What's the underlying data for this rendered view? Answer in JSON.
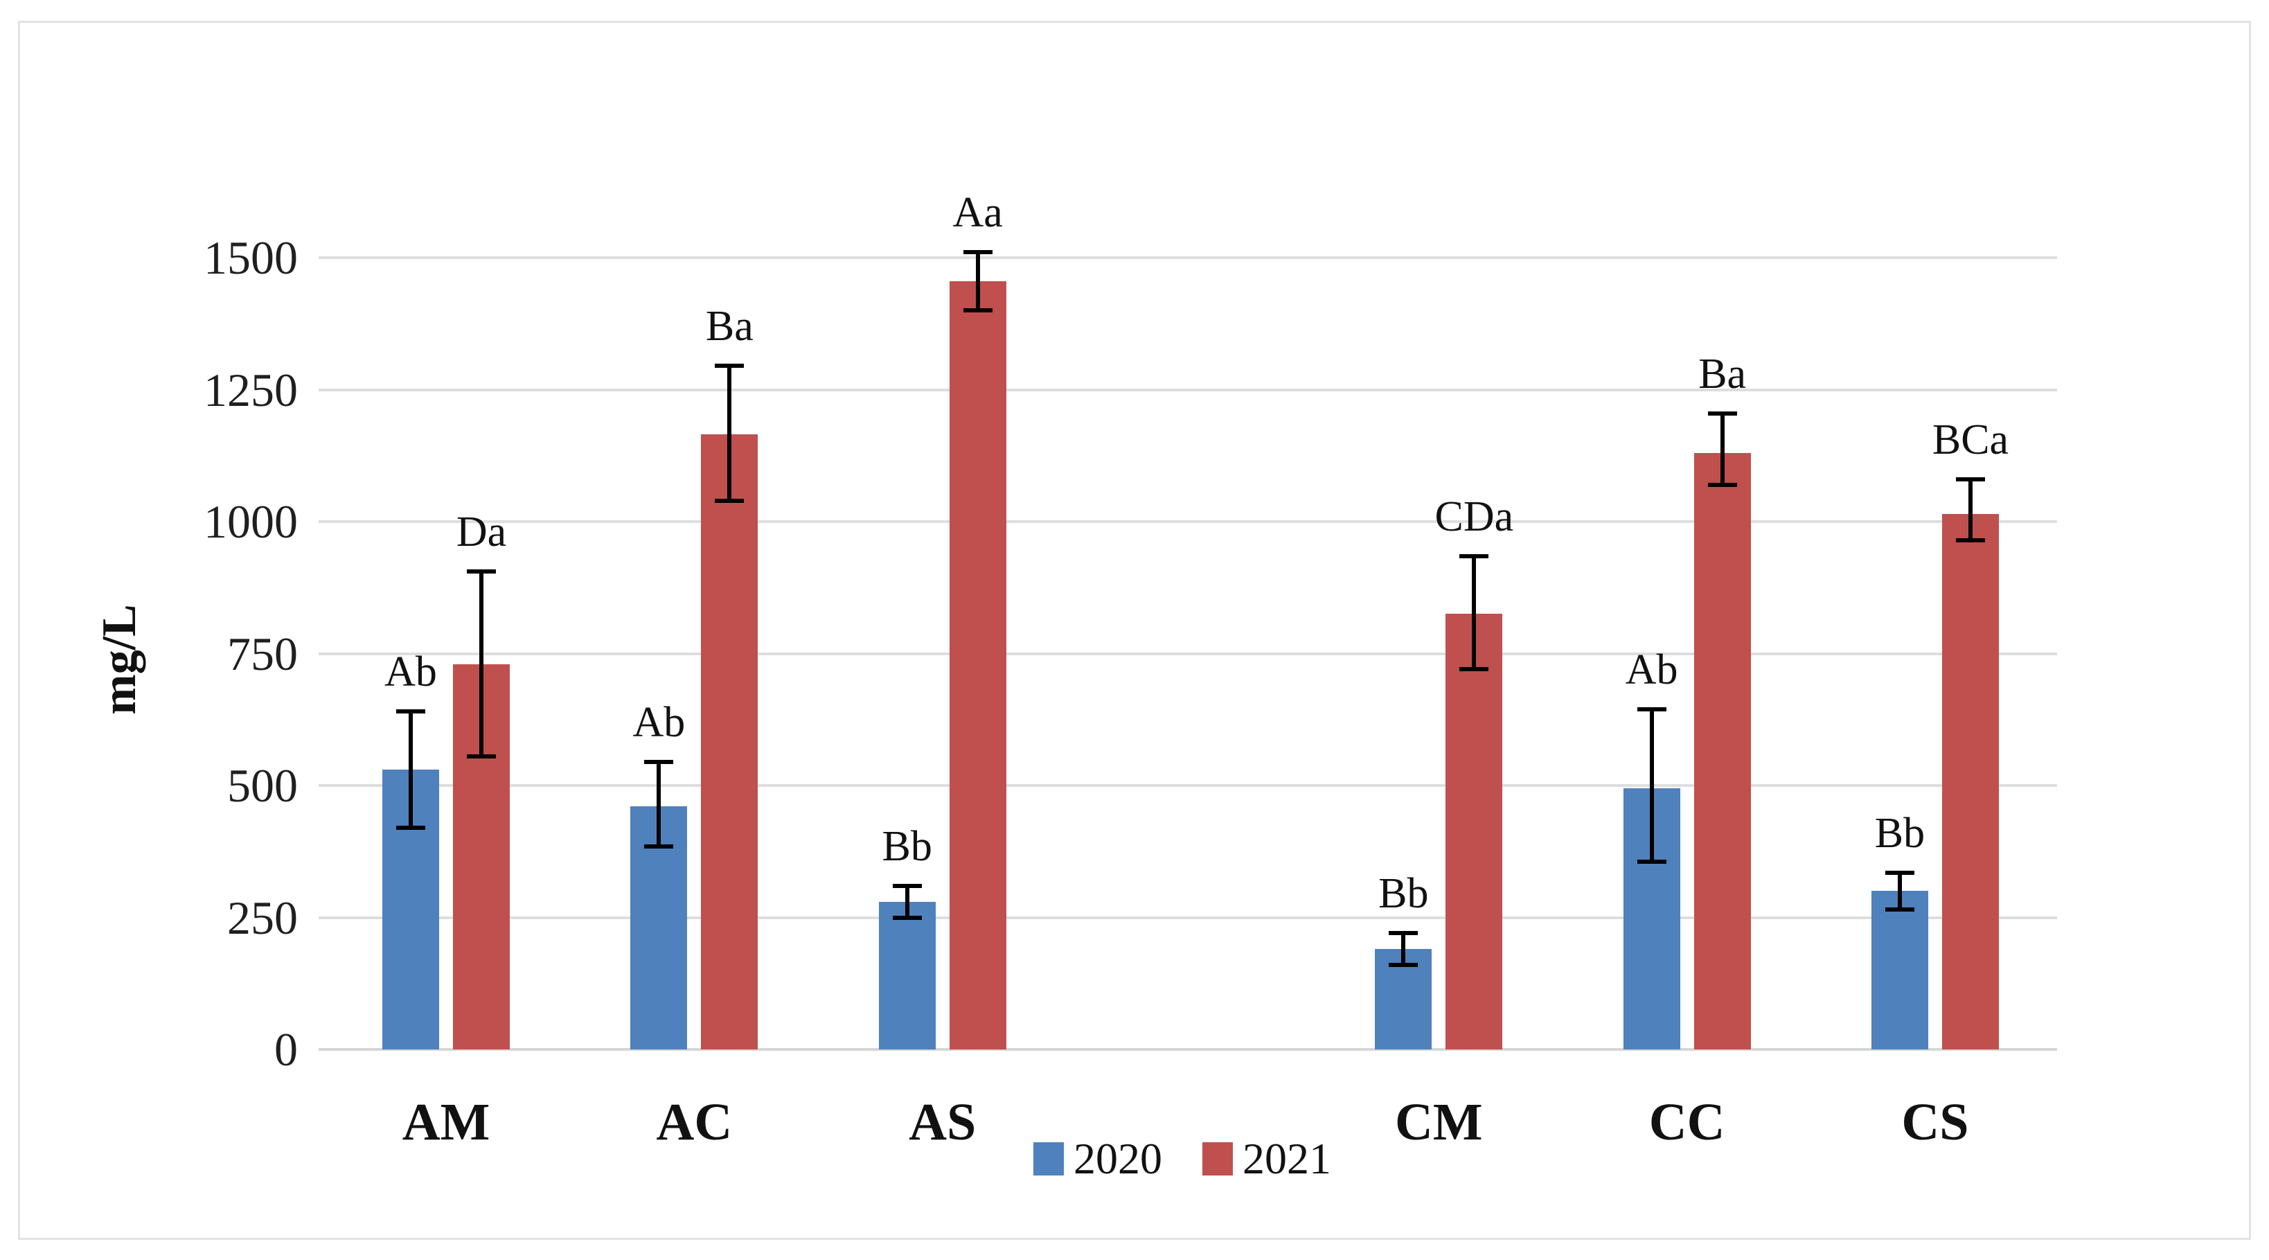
{
  "figure": {
    "background_color": "#FFFFFF",
    "frame_border_color": "#E3E3E3",
    "gridline_color": "#DEDEDE",
    "error_bar_color": "#000000"
  },
  "chart_data": {
    "type": "bar",
    "title": "",
    "xlabel": "",
    "ylabel": "mg/L",
    "ylim": [
      0,
      1500
    ],
    "y_ticks": [
      0,
      250,
      500,
      750,
      1000,
      1250,
      1500
    ],
    "y_tick_labels": [
      "0",
      "250",
      "500",
      "750",
      "1000",
      "1250",
      "1500"
    ],
    "grid": true,
    "categories": [
      "AM",
      "AC",
      "AS",
      "CM",
      "CC",
      "CS"
    ],
    "group_gap_after_index": 2,
    "legend_position": "bottom-center",
    "series": [
      {
        "name": "2020",
        "color": "#4F81BD",
        "values": [
          530,
          460,
          280,
          190,
          495,
          300
        ],
        "error_low": [
          420,
          385,
          250,
          160,
          355,
          265
        ],
        "error_high": [
          640,
          545,
          310,
          220,
          645,
          335
        ],
        "letters": [
          "Ab",
          "Ab",
          "Bb",
          "Bb",
          "Ab",
          "Bb"
        ]
      },
      {
        "name": "2021",
        "color": "#C0504D",
        "values": [
          730,
          1165,
          1455,
          825,
          1130,
          1015
        ],
        "error_low": [
          555,
          1040,
          1400,
          720,
          1070,
          965
        ],
        "error_high": [
          905,
          1295,
          1510,
          935,
          1205,
          1080
        ],
        "letters": [
          "Da",
          "Ba",
          "Aa",
          "CDa",
          "Ba",
          "BCa"
        ]
      }
    ]
  },
  "legend": {
    "items": [
      {
        "label": "2020",
        "color": "#4F81BD"
      },
      {
        "label": "2021",
        "color": "#C0504D"
      }
    ]
  }
}
